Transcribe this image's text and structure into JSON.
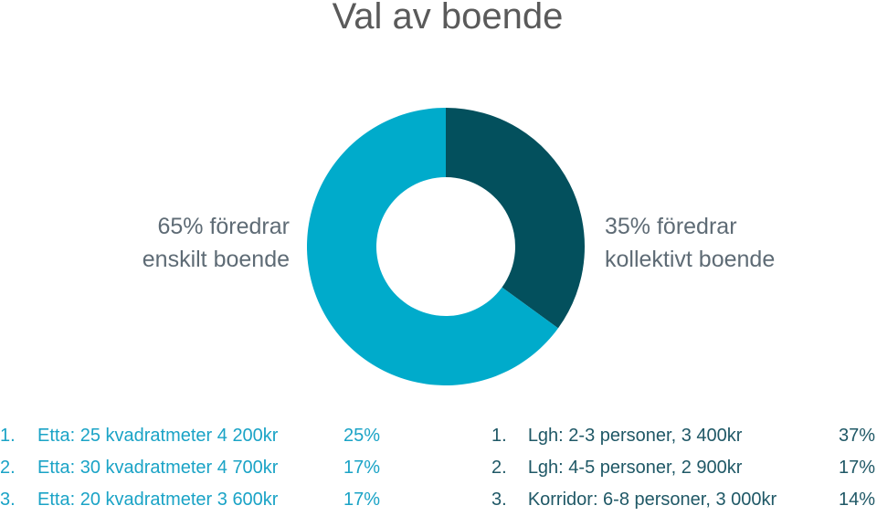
{
  "chart_data": {
    "type": "pie",
    "title": "Val av boende",
    "slices": [
      {
        "label": "35% föredrar kollektivt boende",
        "value": 35,
        "color": "#03505d"
      },
      {
        "label": "65% föredrar enskilt boende",
        "value": 65,
        "color": "#00abcb"
      }
    ],
    "annotations": {
      "left": {
        "line1": "65% föredrar",
        "line2": "enskilt boende"
      },
      "right": {
        "line1": "35% föredrar",
        "line2": "kollektivt boende"
      }
    }
  },
  "lists": {
    "enskilt": [
      {
        "num": "1.",
        "text": "Etta: 25 kvadratmeter 4 200kr",
        "pct": "25%"
      },
      {
        "num": "2.",
        "text": "Etta: 30 kvadratmeter 4 700kr",
        "pct": "17%"
      },
      {
        "num": "3.",
        "text": "Etta: 20 kvadratmeter 3 600kr",
        "pct": "17%"
      }
    ],
    "kollektivt": [
      {
        "num": "1.",
        "text": "Lgh: 2-3 personer, 3 400kr",
        "pct": "37%"
      },
      {
        "num": "2.",
        "text": "Lgh: 4-5 personer, 2 900kr",
        "pct": "17%"
      },
      {
        "num": "3.",
        "text": "Korridor: 6-8 personer, 3 000kr",
        "pct": "14%"
      }
    ]
  }
}
